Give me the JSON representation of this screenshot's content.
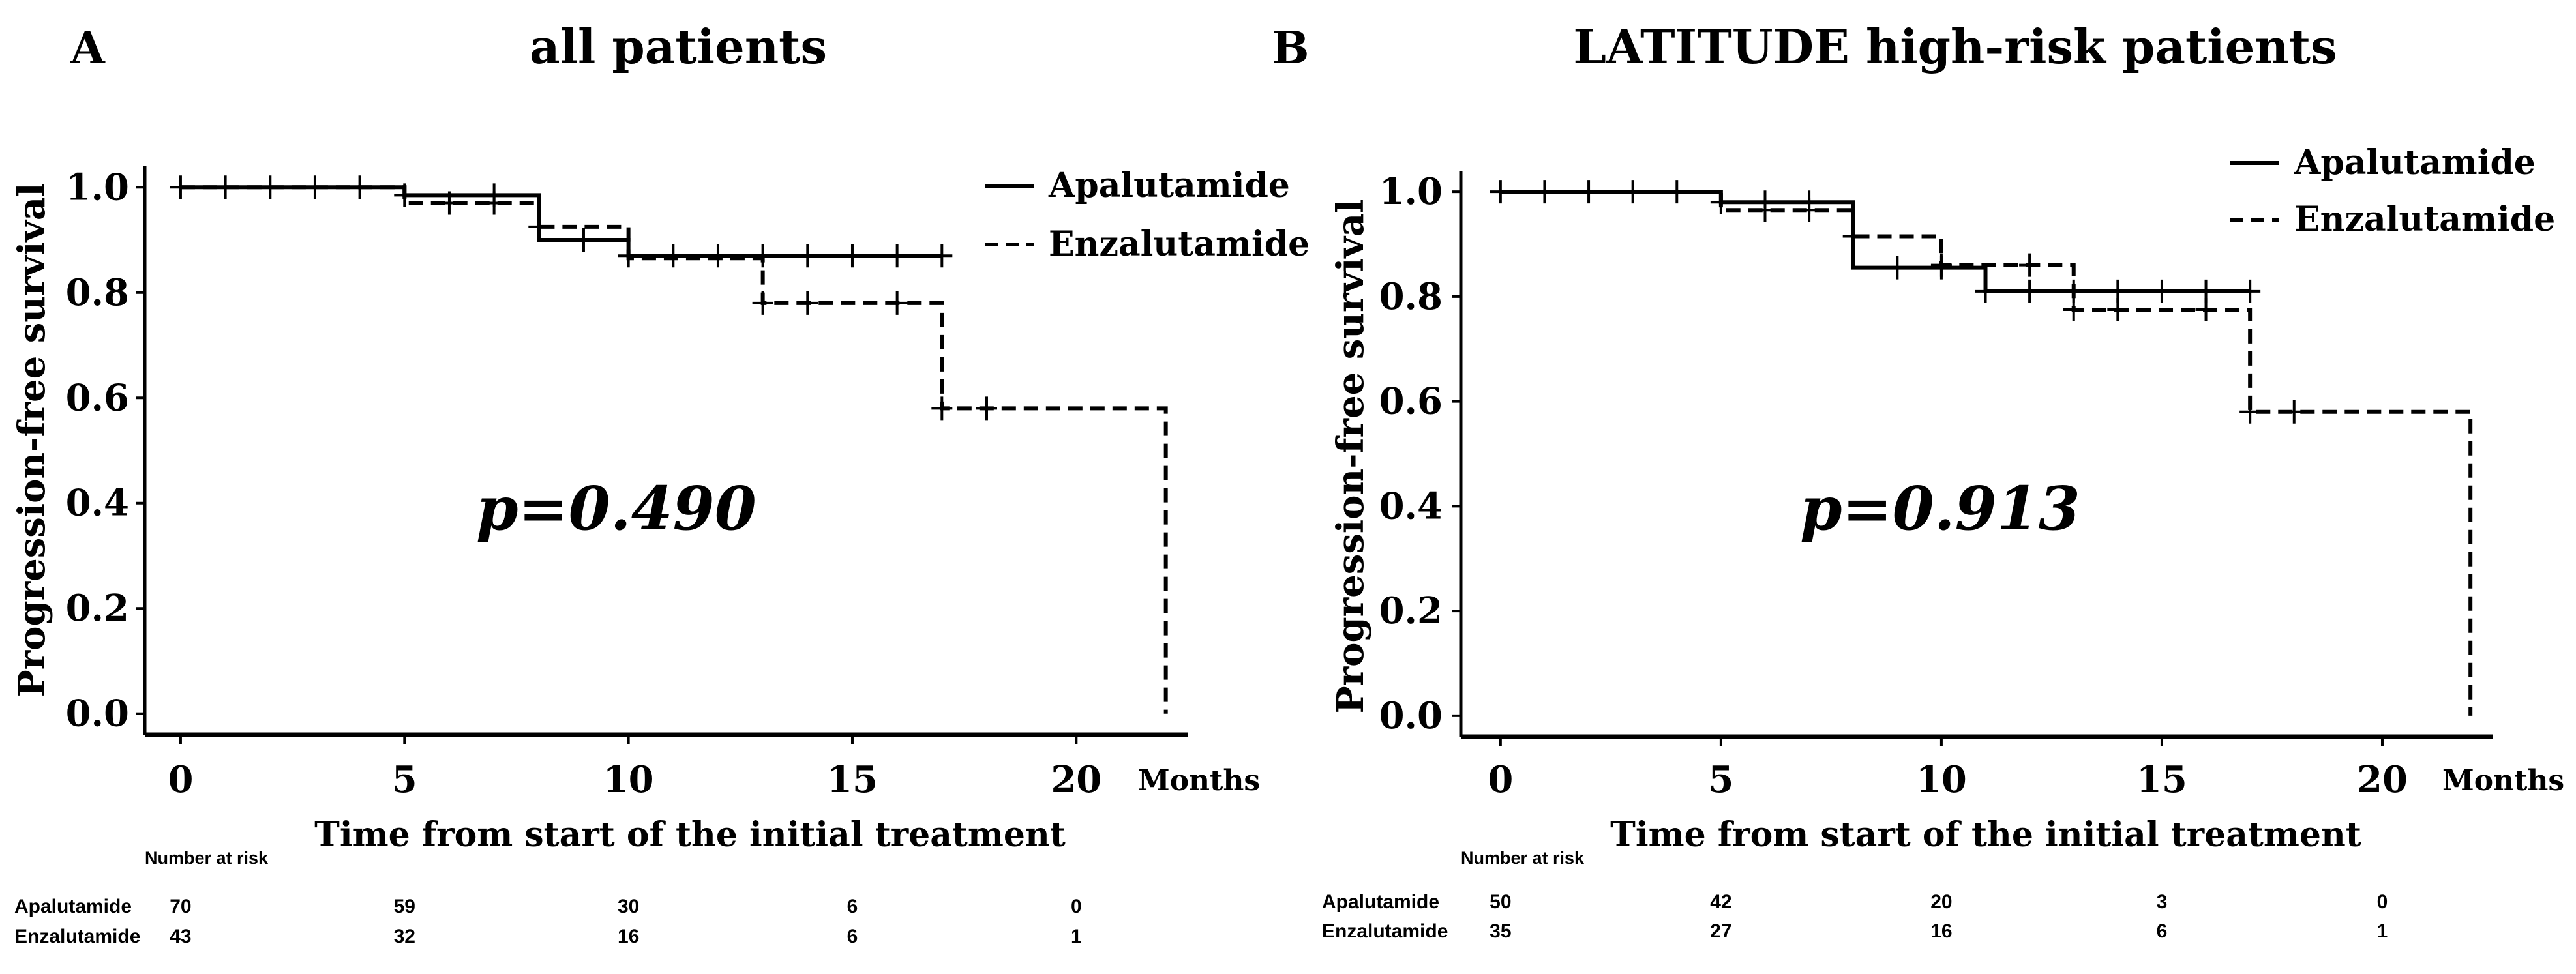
{
  "figure": {
    "panel_labels": [
      "A",
      "B"
    ],
    "months_unit_label": "Months",
    "number_at_risk_label": "Number at risk"
  },
  "chart_data": [
    {
      "type": "line",
      "subtype": "kaplan-meier",
      "panel_label": "A",
      "title": "all patients",
      "xlabel": "Time from start of the initial treatment",
      "ylabel": "Progression-free survival",
      "x_unit": "Months",
      "xlim": [
        -0.8,
        22.5
      ],
      "ylim": [
        -0.04,
        1.04
      ],
      "xticks": [
        0,
        5,
        10,
        15,
        20
      ],
      "yticks": [
        0.0,
        0.2,
        0.4,
        0.6,
        0.8,
        1.0
      ],
      "ytick_labels": [
        "0.0",
        "0.2",
        "0.4",
        "0.6",
        "0.8",
        "1.0"
      ],
      "grid": false,
      "legend_position": "top-right",
      "annotation": "p=0.490",
      "series": [
        {
          "name": "Apalutamide",
          "style": "solid",
          "steps": [
            [
              0,
              1.0
            ],
            [
              5,
              0.985
            ],
            [
              8,
              0.9
            ],
            [
              10,
              0.87
            ],
            [
              11,
              0.87
            ],
            [
              17,
              0.87
            ]
          ],
          "end_time": 17,
          "censor_times": [
            0,
            1,
            2,
            3,
            4,
            5,
            7,
            9,
            10,
            11,
            12,
            13,
            14,
            15,
            16,
            17
          ]
        },
        {
          "name": "Enzalutamide",
          "style": "dashed",
          "steps": [
            [
              0,
              1.0
            ],
            [
              5,
              0.97
            ],
            [
              8,
              0.925
            ],
            [
              10,
              0.865
            ],
            [
              13,
              0.78
            ],
            [
              17,
              0.58
            ],
            [
              22,
              0.0
            ]
          ],
          "end_time": 22,
          "censor_times": [
            6,
            7,
            8,
            13,
            14,
            16,
            17,
            18
          ]
        }
      ],
      "risk_table": {
        "times": [
          0,
          5,
          10,
          15,
          20
        ],
        "rows": [
          {
            "name": "Apalutamide",
            "values": [
              "70",
              "59",
              "30",
              "6",
              "0"
            ]
          },
          {
            "name": "Enzalutamide",
            "values": [
              "43",
              "32",
              "16",
              "6",
              "1"
            ]
          }
        ]
      }
    },
    {
      "type": "line",
      "subtype": "kaplan-meier",
      "panel_label": "B",
      "title": "LATITUDE high-risk patients",
      "xlabel": "Time from start of the initial treatment",
      "ylabel": "Progression-free survival",
      "x_unit": "Months",
      "xlim": [
        -0.9,
        22.5
      ],
      "ylim": [
        -0.04,
        1.04
      ],
      "xticks": [
        0,
        5,
        10,
        15,
        20
      ],
      "yticks": [
        0.0,
        0.2,
        0.4,
        0.6,
        0.8,
        1.0
      ],
      "ytick_labels": [
        "0.0",
        "0.2",
        "0.4",
        "0.6",
        "0.8",
        "1.0"
      ],
      "grid": false,
      "legend_position": "top-right",
      "annotation": "p=0.913",
      "series": [
        {
          "name": "Apalutamide",
          "style": "solid",
          "steps": [
            [
              0,
              1.0
            ],
            [
              5,
              0.98
            ],
            [
              8,
              0.855
            ],
            [
              11,
              0.81
            ],
            [
              17,
              0.81
            ]
          ],
          "end_time": 17,
          "censor_times": [
            0,
            1,
            2,
            3,
            4,
            5,
            6,
            7,
            9,
            10,
            11,
            12,
            13,
            14,
            15,
            16,
            17
          ]
        },
        {
          "name": "Enzalutamide",
          "style": "dashed",
          "steps": [
            [
              0,
              1.0
            ],
            [
              5,
              0.965
            ],
            [
              8,
              0.915
            ],
            [
              10,
              0.86
            ],
            [
              13,
              0.775
            ],
            [
              17,
              0.58
            ],
            [
              22,
              0.0
            ]
          ],
          "end_time": 22,
          "censor_times": [
            6,
            7,
            8,
            10,
            12,
            13,
            14,
            16,
            17,
            18
          ]
        }
      ],
      "risk_table": {
        "times": [
          0,
          5,
          10,
          15,
          20
        ],
        "rows": [
          {
            "name": "Apalutamide",
            "values": [
              "50",
              "42",
              "20",
              "3",
              "0"
            ]
          },
          {
            "name": "Enzalutamide",
            "values": [
              "35",
              "27",
              "16",
              "6",
              "1"
            ]
          }
        ]
      }
    }
  ]
}
